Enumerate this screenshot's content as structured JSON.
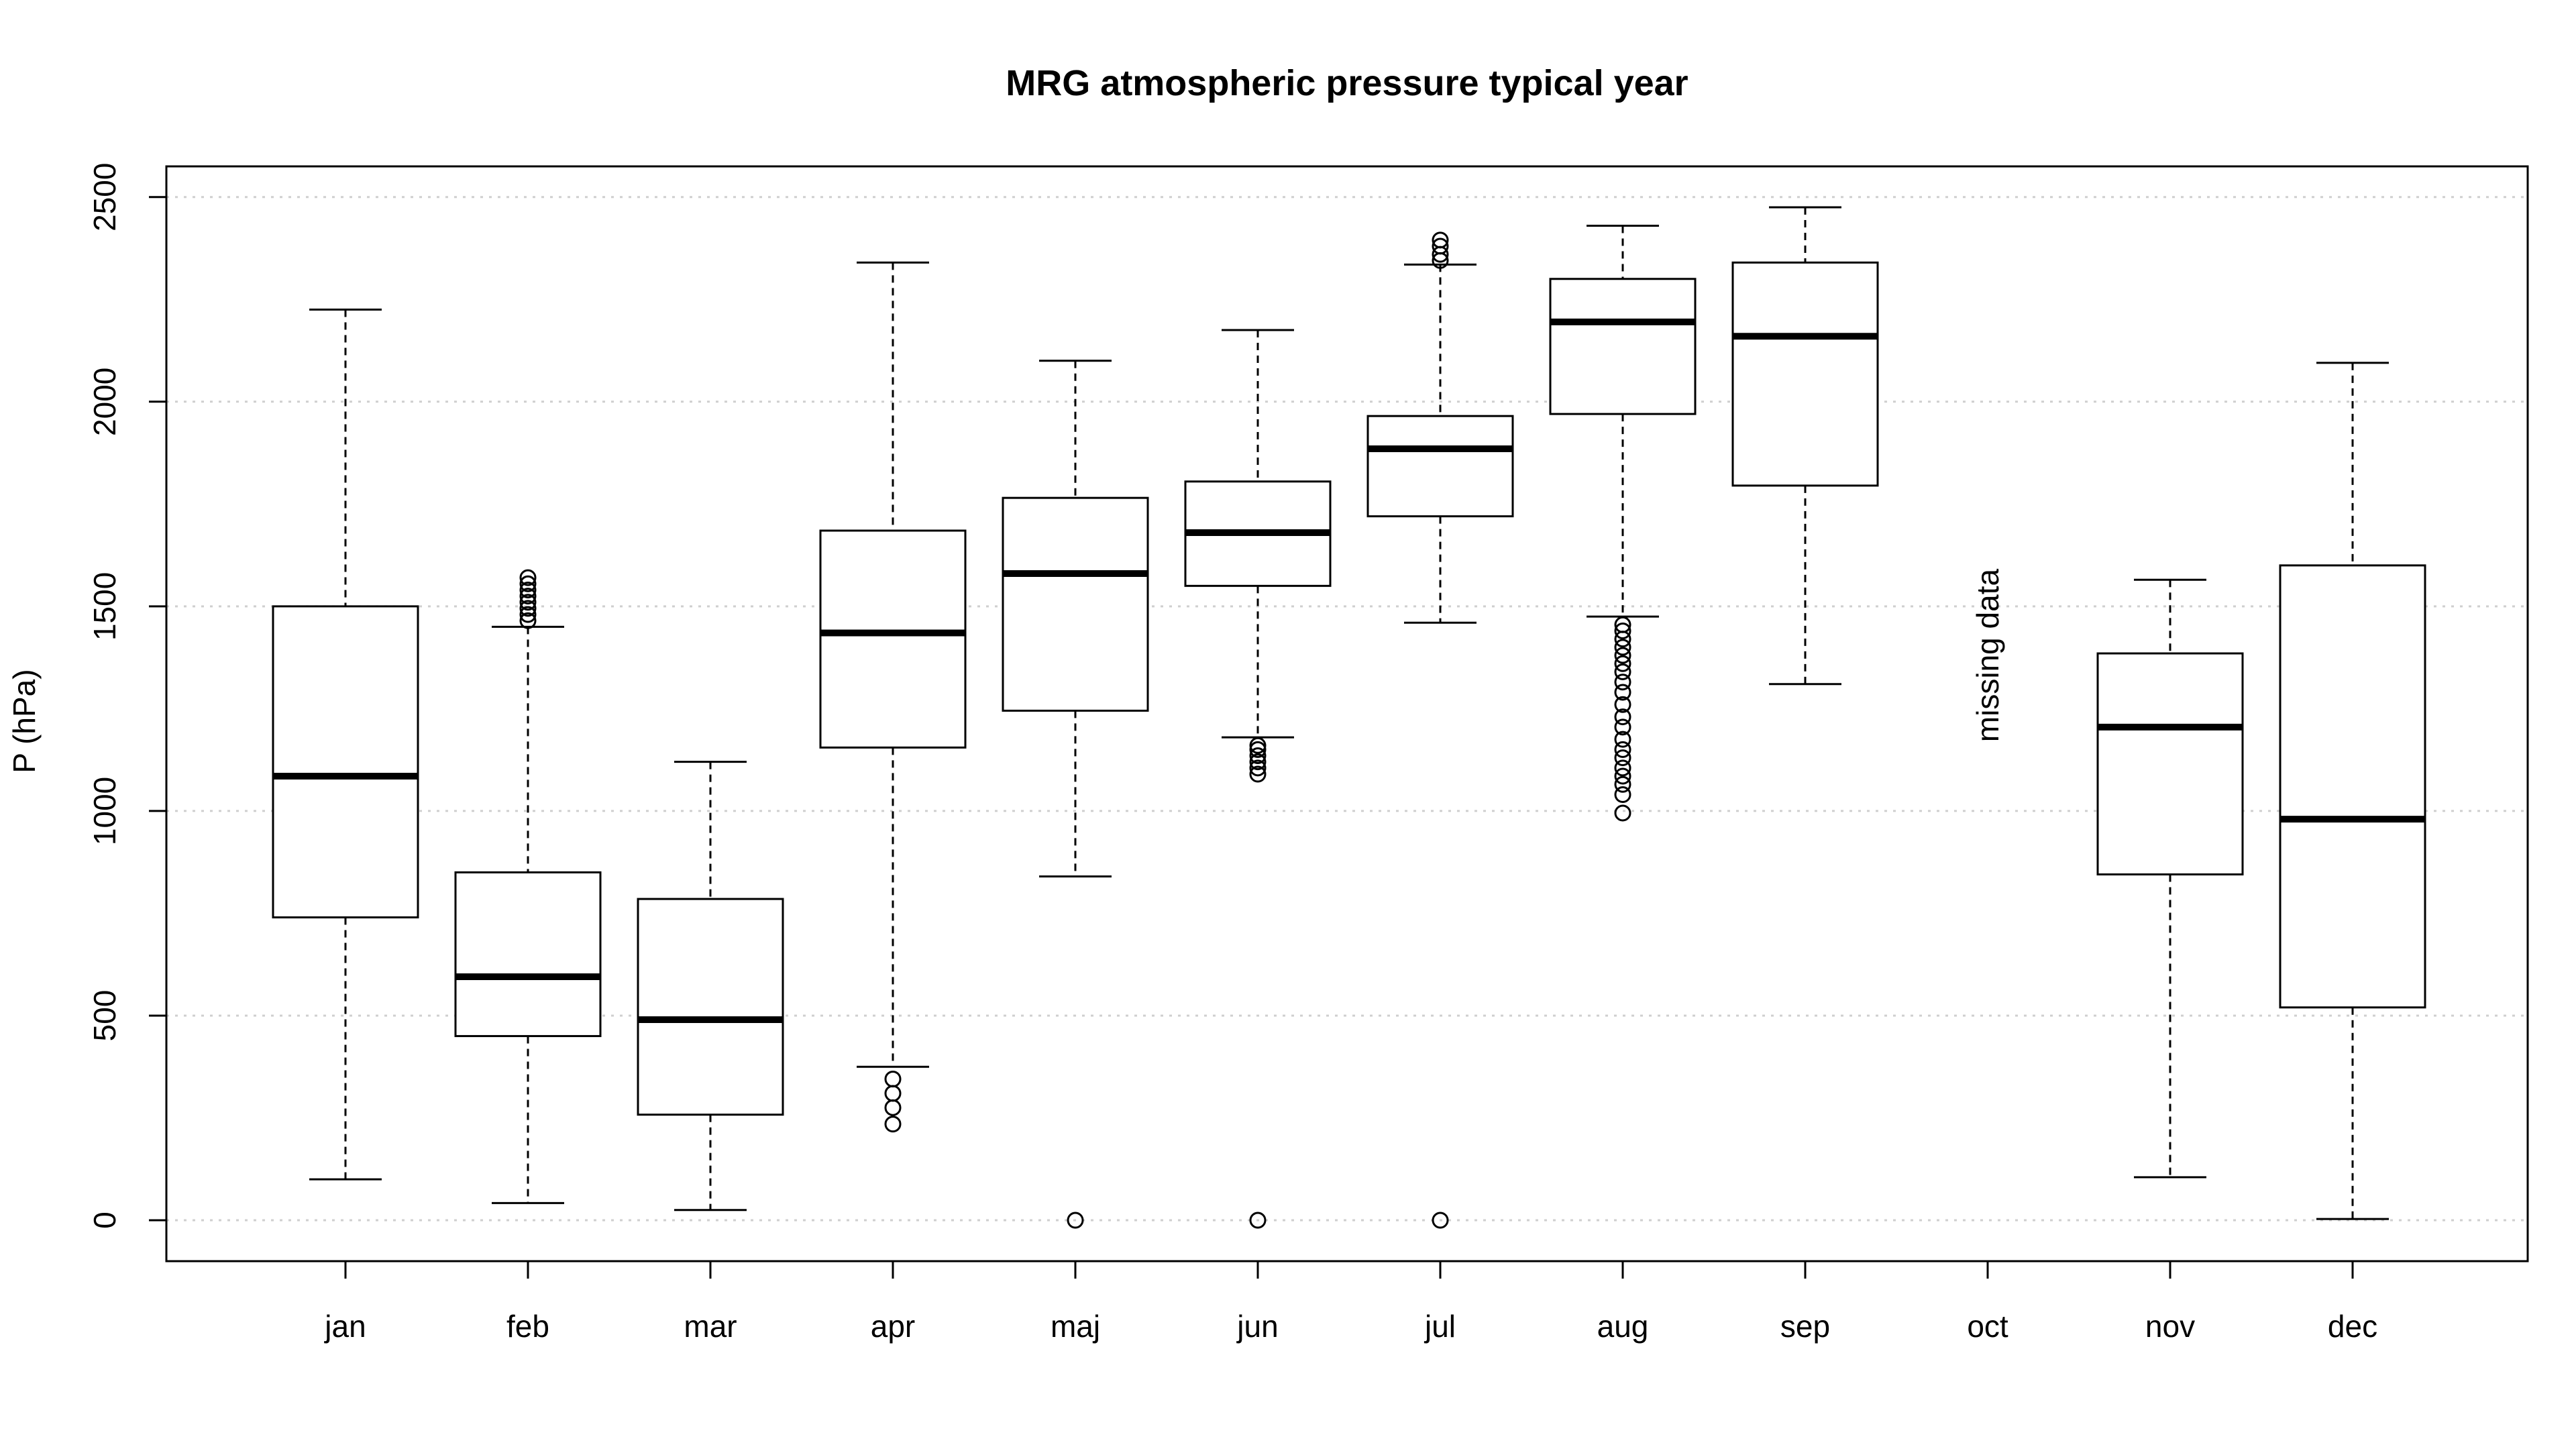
{
  "chart_data": {
    "type": "boxplot",
    "title": "MRG atmospheric pressure typical year",
    "xlabel": "",
    "ylabel": "P (hPa)",
    "ylim": [
      -100,
      2575
    ],
    "yticks": [
      0,
      500,
      1000,
      1500,
      2000,
      2500
    ],
    "grid": "horizontal-dotted",
    "categories": [
      "jan",
      "feb",
      "mar",
      "apr",
      "maj",
      "jun",
      "jul",
      "aug",
      "sep",
      "oct",
      "nov",
      "dec"
    ],
    "boxes": [
      {
        "month": "jan",
        "whisker_low": 100,
        "q1": 740,
        "median": 1085,
        "q3": 1500,
        "whisker_high": 2225,
        "outliers": []
      },
      {
        "month": "feb",
        "whisker_low": 42,
        "q1": 450,
        "median": 595,
        "q3": 850,
        "whisker_high": 1450,
        "outliers": [
          1465,
          1480,
          1495,
          1510,
          1525,
          1540,
          1555,
          1570
        ]
      },
      {
        "month": "mar",
        "whisker_low": 25,
        "q1": 258,
        "median": 490,
        "q3": 785,
        "whisker_high": 1120,
        "outliers": []
      },
      {
        "month": "apr",
        "whisker_low": 375,
        "q1": 1155,
        "median": 1435,
        "q3": 1685,
        "whisker_high": 2340,
        "outliers": [
          235,
          275,
          310,
          345
        ]
      },
      {
        "month": "maj",
        "whisker_low": 840,
        "q1": 1245,
        "median": 1580,
        "q3": 1765,
        "whisker_high": 2100,
        "outliers": [
          0
        ]
      },
      {
        "month": "jun",
        "whisker_low": 1180,
        "q1": 1550,
        "median": 1680,
        "q3": 1805,
        "whisker_high": 2175,
        "outliers": [
          0,
          1090,
          1105,
          1120,
          1135,
          1150,
          1160
        ]
      },
      {
        "month": "jul",
        "whisker_low": 1460,
        "q1": 1720,
        "median": 1885,
        "q3": 1965,
        "whisker_high": 2335,
        "outliers": [
          0,
          2345,
          2360,
          2380,
          2395
        ]
      },
      {
        "month": "aug",
        "whisker_low": 1475,
        "q1": 1970,
        "median": 2195,
        "q3": 2300,
        "whisker_high": 2430,
        "outliers": [
          995,
          1040,
          1065,
          1085,
          1105,
          1130,
          1150,
          1175,
          1205,
          1230,
          1260,
          1290,
          1315,
          1340,
          1360,
          1380,
          1400,
          1420,
          1440,
          1455
        ]
      },
      {
        "month": "sep",
        "whisker_low": 1310,
        "q1": 1795,
        "median": 2160,
        "q3": 2340,
        "whisker_high": 2475,
        "outliers": []
      },
      {
        "month": "nov",
        "whisker_low": 105,
        "q1": 845,
        "median": 1205,
        "q3": 1385,
        "whisker_high": 1565,
        "outliers": []
      },
      {
        "month": "dec",
        "whisker_low": 3,
        "q1": 520,
        "median": 980,
        "q3": 1600,
        "whisker_high": 2095,
        "outliers": []
      }
    ],
    "annotations": [
      {
        "category": "oct",
        "y": 1380,
        "text": "missing data",
        "rotation": -90
      }
    ]
  }
}
